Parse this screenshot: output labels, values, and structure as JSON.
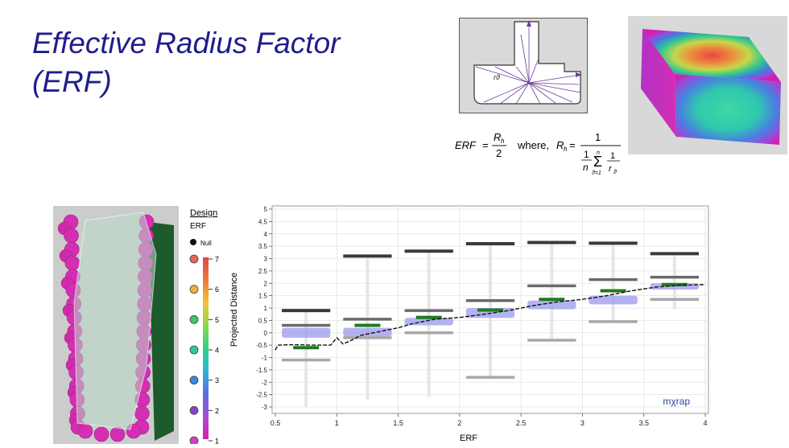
{
  "slide": {
    "title_line1": "Effective Radius Factor",
    "title_line2": "(ERF)",
    "title_color": "#1f1d8c"
  },
  "diagram": {
    "label": "rϑ",
    "arrow_color": "#6a3d9a"
  },
  "formula": {
    "lhs": "ERF",
    "rh": "R",
    "rh_sub": "h",
    "denom_two": "2",
    "where": "where,",
    "one": "1",
    "n": "n",
    "sum_top": "n",
    "sum_bottom": "ϑ=1",
    "r_theta": "r",
    "r_sub": "ϑ"
  },
  "legend": {
    "title": "Design",
    "subtitle": "ERF",
    "null_label": "Null",
    "items": [
      {
        "label": "7",
        "color": "#e8625f"
      },
      {
        "label": "6",
        "color": "#f0b040"
      },
      {
        "label": "5",
        "color": "#3fc66b"
      },
      {
        "label": "4",
        "color": "#2fc79c"
      },
      {
        "label": "3",
        "color": "#3f86d9"
      },
      {
        "label": "2",
        "color": "#8a3fcf"
      },
      {
        "label": "1",
        "color": "#d43fb8"
      }
    ],
    "gradient_colors": [
      "#d91fa8",
      "#a94cd6",
      "#5a6fe0",
      "#2fb3d6",
      "#31d08a",
      "#8bd94a",
      "#f2c23a",
      "#ee7a3c",
      "#e24545"
    ]
  },
  "chart_data": {
    "type": "scatter",
    "xlabel": "ERF",
    "ylabel": "Projected Distance",
    "xlim": [
      0.5,
      4
    ],
    "ylim": [
      -3,
      5
    ],
    "x_ticks": [
      "0.5",
      "1",
      "1.5",
      "2",
      "2.5",
      "3",
      "3.5",
      "4"
    ],
    "y_ticks": [
      "-3",
      "-2.5",
      "-2",
      "-1.5",
      "-1",
      "-0.5",
      "0",
      "0.5",
      "1",
      "1.5",
      "2",
      "2.5",
      "3",
      "3.5",
      "4",
      "4.5",
      "5"
    ],
    "grid": true,
    "bins": [
      {
        "x": [
          0.5,
          1
        ],
        "center": 0.75,
        "max": 0.9,
        "q_high": 0.3,
        "mean": -0.6,
        "q_low": -1.1,
        "band": [
          -0.2,
          0.2
        ],
        "whisker": [
          -4.5,
          0.9
        ]
      },
      {
        "x": [
          1,
          1.5
        ],
        "center": 1.25,
        "max": 3.1,
        "q_high": 0.55,
        "mean": 0.3,
        "q_low": -0.2,
        "band": [
          -0.15,
          0.2
        ],
        "whisker": [
          -2.7,
          3.1
        ]
      },
      {
        "x": [
          1.5,
          2
        ],
        "center": 1.75,
        "max": 3.3,
        "q_high": 0.9,
        "mean": 0.62,
        "q_low": 0.0,
        "band": [
          0.3,
          0.6
        ],
        "whisker": [
          -2.6,
          3.3
        ]
      },
      {
        "x": [
          2,
          2.5
        ],
        "center": 2.25,
        "max": 3.6,
        "q_high": 1.3,
        "mean": 0.92,
        "q_low": -1.8,
        "band": [
          0.6,
          1.0
        ],
        "whisker": [
          -1.8,
          3.6
        ]
      },
      {
        "x": [
          2.5,
          3
        ],
        "center": 2.75,
        "max": 3.65,
        "q_high": 1.9,
        "mean": 1.35,
        "q_low": -0.3,
        "band": [
          0.95,
          1.3
        ],
        "whisker": [
          -0.3,
          3.65
        ]
      },
      {
        "x": [
          3,
          3.5
        ],
        "center": 3.25,
        "max": 3.62,
        "q_high": 2.15,
        "mean": 1.7,
        "q_low": 0.45,
        "band": [
          1.15,
          1.5
        ],
        "whisker": [
          0.45,
          3.62
        ]
      },
      {
        "x": [
          3.5,
          4
        ],
        "center": 3.75,
        "max": 3.2,
        "q_high": 2.25,
        "mean": 1.95,
        "q_low": 1.35,
        "band": [
          1.75,
          2.0
        ],
        "whisker": [
          0.95,
          3.2
        ]
      }
    ],
    "trend": [
      {
        "x": 0.5,
        "y": -0.7
      },
      {
        "x": 0.52,
        "y": -0.5
      },
      {
        "x": 0.65,
        "y": -0.48
      },
      {
        "x": 0.8,
        "y": -0.5
      },
      {
        "x": 0.95,
        "y": -0.5
      },
      {
        "x": 1.0,
        "y": -0.2
      },
      {
        "x": 1.05,
        "y": -0.45
      },
      {
        "x": 1.1,
        "y": -0.35
      },
      {
        "x": 1.2,
        "y": -0.1
      },
      {
        "x": 1.35,
        "y": 0.05
      },
      {
        "x": 1.5,
        "y": 0.2
      },
      {
        "x": 1.6,
        "y": 0.35
      },
      {
        "x": 1.8,
        "y": 0.55
      },
      {
        "x": 2.0,
        "y": 0.62
      },
      {
        "x": 2.2,
        "y": 0.75
      },
      {
        "x": 2.4,
        "y": 0.9
      },
      {
        "x": 2.6,
        "y": 1.1
      },
      {
        "x": 2.8,
        "y": 1.25
      },
      {
        "x": 3.0,
        "y": 1.35
      },
      {
        "x": 3.2,
        "y": 1.5
      },
      {
        "x": 3.4,
        "y": 1.7
      },
      {
        "x": 3.6,
        "y": 1.85
      },
      {
        "x": 3.8,
        "y": 1.92
      },
      {
        "x": 4.0,
        "y": 1.95
      }
    ],
    "watermark": "mχrap",
    "colors": {
      "max": "#3a3a3a",
      "q_high": "#6a6a6a",
      "q_low": "#a8a8a8",
      "mean": "#1e7a1e",
      "band": "#9999ee",
      "whisker": "#e6e6e6",
      "trend": "#111111"
    }
  }
}
